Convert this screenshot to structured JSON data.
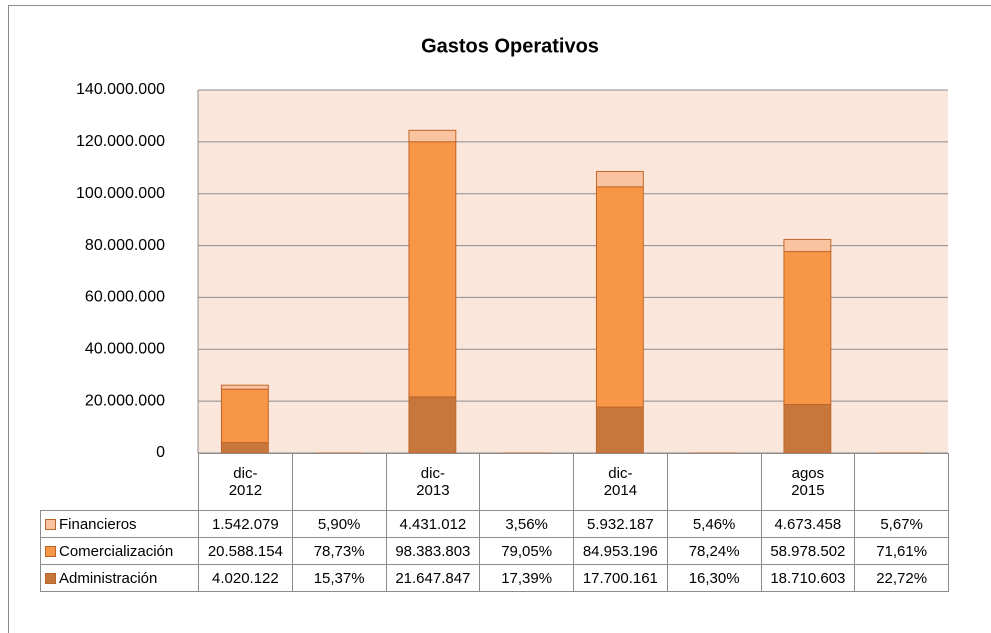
{
  "chart_data": {
    "type": "stacked_bar",
    "title": "Gastos Operativos",
    "categories": [
      "dic-2012",
      null,
      "dic-2013",
      null,
      "dic- 2014",
      null,
      "agos 2015",
      null
    ],
    "series": [
      {
        "name": "Financieros",
        "color": "#fac3a0",
        "values": [
          1542079,
          5.9,
          4431012,
          3.56,
          5932187,
          5.46,
          4673458,
          5.67
        ],
        "value_labels": [
          "1.542.079",
          "5,90%",
          "4.431.012",
          "3,56%",
          "5.932.187",
          "5,46%",
          "4.673.458",
          "5,67%"
        ]
      },
      {
        "name": "Comercialización",
        "color": "#f79646",
        "values": [
          20588154,
          78.73,
          98383803,
          79.05,
          84953196,
          78.24,
          58978502,
          71.61
        ],
        "value_labels": [
          "20.588.154",
          "78,73%",
          "98.383.803",
          "79,05%",
          "84.953.196",
          "78,24%",
          "58.978.502",
          "71,61%"
        ]
      },
      {
        "name": "Administración",
        "color": "#c8773c",
        "values": [
          4020122,
          15.37,
          21647847,
          17.39,
          17700161,
          16.3,
          18710603,
          22.72
        ],
        "value_labels": [
          "4.020.122",
          "15,37%",
          "21.647.847",
          "17,39%",
          "17.700.161",
          "16,30%",
          "18.710.603",
          "22,72%"
        ]
      }
    ],
    "ylim": [
      0,
      140000000
    ],
    "yticks": [
      0,
      {
        "value": 20000000,
        "label": "20.000.000"
      },
      {
        "value": 40000000,
        "label": "40.000.000"
      },
      {
        "value": 60000000,
        "label": "60.000.000"
      },
      {
        "value": 80000000,
        "label": "80.000.000"
      },
      {
        "value": 100000000,
        "label": "100.000.000"
      },
      {
        "value": 120000000,
        "label": "120.000.000"
      },
      {
        "value": 140000000,
        "label": "140.000.000"
      }
    ],
    "grid": true,
    "data_table": true
  }
}
